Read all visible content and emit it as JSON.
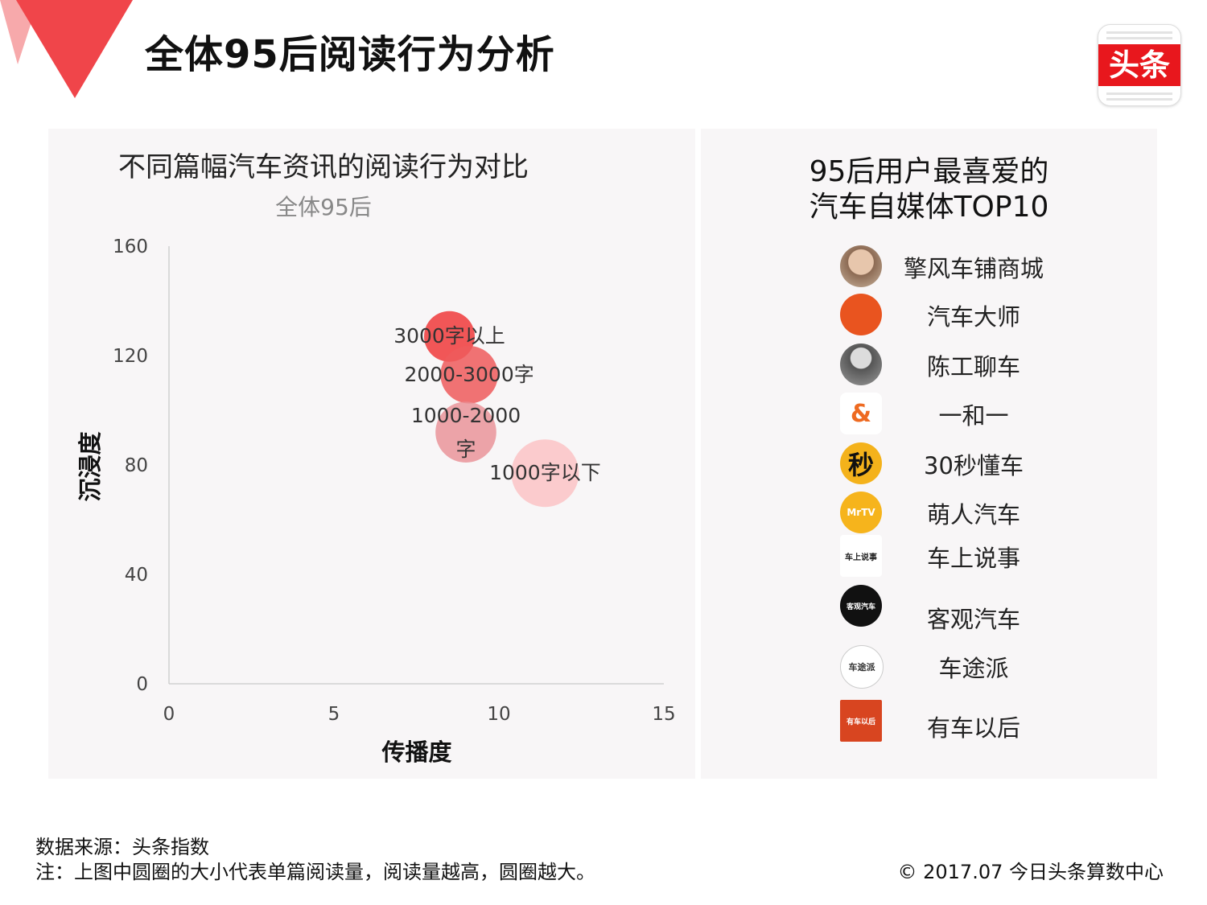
{
  "header": {
    "title": "全体95后阅读行为分析",
    "logo_text": "头条"
  },
  "chart_data": {
    "type": "scatter",
    "title": "不同篇幅汽车资讯的阅读行为对比",
    "subtitle": "全体95后",
    "xlabel": "传播度",
    "ylabel": "沉浸度",
    "xlim": [
      0,
      15
    ],
    "ylim": [
      0,
      160
    ],
    "x_ticks": [
      "0",
      "5",
      "10",
      "15"
    ],
    "y_ticks": [
      "0",
      "40",
      "80",
      "120",
      "160"
    ],
    "grid": false,
    "size_meaning": "single-article reading volume",
    "points": [
      {
        "label": "3000字以上",
        "x": 8.5,
        "y": 127,
        "size": 30,
        "color": "#f04545",
        "opacity": 0.9
      },
      {
        "label": "2000-3000字",
        "x": 9.1,
        "y": 113,
        "size": 34,
        "color": "#ee5a5c",
        "opacity": 0.85
      },
      {
        "label": "1000-2000\n字",
        "x": 9.0,
        "y": 92,
        "size": 36,
        "color": "#e88e94",
        "opacity": 0.8
      },
      {
        "label": "1000字以下",
        "x": 11.4,
        "y": 77,
        "size": 40,
        "color": "#fbc6c8",
        "opacity": 0.9
      }
    ]
  },
  "right_panel": {
    "title_line1": "95后用户最喜爱的",
    "title_line2": "汽车自媒体TOP10",
    "items": [
      {
        "name": "擎风车铺商城",
        "icon": "portrait-avatar-icon",
        "icon_text": ""
      },
      {
        "name": "汽车大师",
        "icon": "lion-avatar-icon",
        "icon_text": ""
      },
      {
        "name": "陈工聊车",
        "icon": "man-avatar-icon",
        "icon_text": ""
      },
      {
        "name": "一和一",
        "icon": "carrot-logo-icon",
        "icon_text": "&"
      },
      {
        "name": "30秒懂车",
        "icon": "seconds-logo-icon",
        "icon_text": "秒"
      },
      {
        "name": "萌人汽车",
        "icon": "mrtv-logo-icon",
        "icon_text": "MrTV"
      },
      {
        "name": "车上说事",
        "icon": "cartoon-logo-icon",
        "icon_text": "车上说事"
      },
      {
        "name": "客观汽车",
        "icon": "black-logo-icon",
        "icon_text": "客观汽车"
      },
      {
        "name": "车途派",
        "icon": "text-logo-icon",
        "icon_text": "车途派"
      },
      {
        "name": "有车以后",
        "icon": "arch-logo-icon",
        "icon_text": "有车以后"
      }
    ]
  },
  "footer": {
    "source": "数据来源：头条指数",
    "note": "注：上图中圆圈的大小代表单篇阅读量，阅读量越高，圆圈越大。",
    "copyright": "© 2017.07 今日头条算数中心"
  }
}
